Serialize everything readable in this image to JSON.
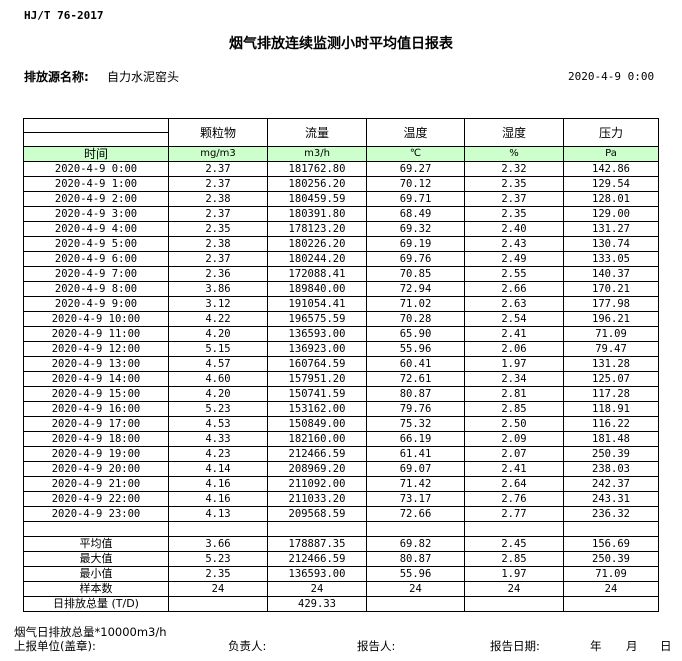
{
  "standard": "HJ/T  76-2017",
  "title": "烟气排放连续监测小时平均值日报表",
  "source_label": "排放源名称:",
  "source_value": "自力水泥窑头",
  "report_datetime": "2020-4-9  0:00",
  "columns": [
    "颗粒物",
    "流量",
    "温度",
    "湿度",
    "压力"
  ],
  "units": {
    "time_label": "时间",
    "values": [
      "mg/m3",
      "m3/h",
      "℃",
      "%",
      "Pa"
    ]
  },
  "header_color": "#ccffcc",
  "rows": [
    [
      "2020-4-9 0:00",
      "2.37",
      "181762.80",
      "69.27",
      "2.32",
      "142.86"
    ],
    [
      "2020-4-9 1:00",
      "2.37",
      "180256.20",
      "70.12",
      "2.35",
      "129.54"
    ],
    [
      "2020-4-9 2:00",
      "2.38",
      "180459.59",
      "69.71",
      "2.37",
      "128.01"
    ],
    [
      "2020-4-9 3:00",
      "2.37",
      "180391.80",
      "68.49",
      "2.35",
      "129.00"
    ],
    [
      "2020-4-9 4:00",
      "2.35",
      "178123.20",
      "69.32",
      "2.40",
      "131.27"
    ],
    [
      "2020-4-9 5:00",
      "2.38",
      "180226.20",
      "69.19",
      "2.43",
      "130.74"
    ],
    [
      "2020-4-9 6:00",
      "2.37",
      "180244.20",
      "69.76",
      "2.49",
      "133.05"
    ],
    [
      "2020-4-9 7:00",
      "2.36",
      "172088.41",
      "70.85",
      "2.55",
      "140.37"
    ],
    [
      "2020-4-9 8:00",
      "3.86",
      "189840.00",
      "72.94",
      "2.66",
      "170.21"
    ],
    [
      "2020-4-9 9:00",
      "3.12",
      "191054.41",
      "71.02",
      "2.63",
      "177.98"
    ],
    [
      "2020-4-9 10:00",
      "4.22",
      "196575.59",
      "70.28",
      "2.54",
      "196.21"
    ],
    [
      "2020-4-9 11:00",
      "4.20",
      "136593.00",
      "65.90",
      "2.41",
      "71.09"
    ],
    [
      "2020-4-9 12:00",
      "5.15",
      "136923.00",
      "55.96",
      "2.06",
      "79.47"
    ],
    [
      "2020-4-9 13:00",
      "4.57",
      "160764.59",
      "60.41",
      "1.97",
      "131.28"
    ],
    [
      "2020-4-9 14:00",
      "4.60",
      "157951.20",
      "72.61",
      "2.34",
      "125.07"
    ],
    [
      "2020-4-9 15:00",
      "4.20",
      "150741.59",
      "80.87",
      "2.81",
      "117.28"
    ],
    [
      "2020-4-9 16:00",
      "5.23",
      "153162.00",
      "79.76",
      "2.85",
      "118.91"
    ],
    [
      "2020-4-9 17:00",
      "4.53",
      "150849.00",
      "75.32",
      "2.50",
      "116.22"
    ],
    [
      "2020-4-9 18:00",
      "4.33",
      "182160.00",
      "66.19",
      "2.09",
      "181.48"
    ],
    [
      "2020-4-9 19:00",
      "4.23",
      "212466.59",
      "61.41",
      "2.07",
      "250.39"
    ],
    [
      "2020-4-9 20:00",
      "4.14",
      "208969.20",
      "69.07",
      "2.41",
      "238.03"
    ],
    [
      "2020-4-9 21:00",
      "4.16",
      "211092.00",
      "71.42",
      "2.64",
      "242.37"
    ],
    [
      "2020-4-9 22:00",
      "4.16",
      "211033.20",
      "73.17",
      "2.76",
      "243.31"
    ],
    [
      "2020-4-9 23:00",
      "4.13",
      "209568.59",
      "72.66",
      "2.77",
      "236.32"
    ]
  ],
  "summary": [
    [
      "平均值",
      "3.66",
      "178887.35",
      "69.82",
      "2.45",
      "156.69"
    ],
    [
      "最大值",
      "5.23",
      "212466.59",
      "80.87",
      "2.85",
      "250.39"
    ],
    [
      "最小值",
      "2.35",
      "136593.00",
      "55.96",
      "1.97",
      "71.09"
    ],
    [
      "样本数",
      "24",
      "24",
      "24",
      "24",
      "24"
    ],
    [
      "日排放总量 (T/D)",
      "",
      "429.33",
      "",
      "",
      ""
    ]
  ],
  "footer": {
    "note": "烟气日排放总量*10000m3/h",
    "unit_label": "上报单位(盖章):",
    "responsible_label": "负责人:",
    "reporter_label": "报告人:",
    "report_date_label": "报告日期:",
    "year": "年",
    "month": "月",
    "day": "日"
  }
}
